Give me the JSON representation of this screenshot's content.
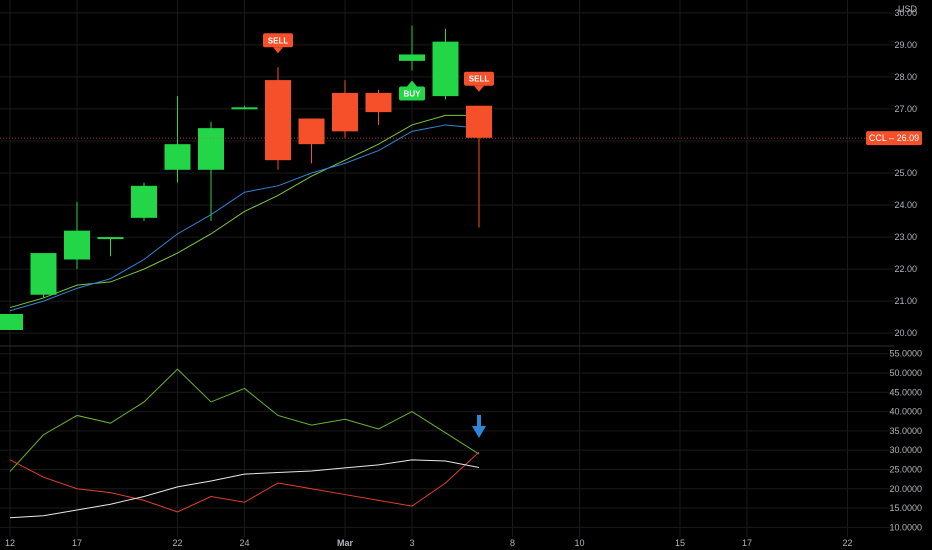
{
  "chart_data": [
    {
      "type": "candlestick",
      "currency": "USD",
      "symbol_label": "CCL",
      "last_price": "26.09",
      "ylim": [
        19.6,
        30.4
      ],
      "y_ticks": [
        "20.00",
        "21.00",
        "22.00",
        "23.00",
        "24.00",
        "25.00",
        "26.00",
        "27.00",
        "28.00",
        "29.00",
        "30.00"
      ],
      "x_ticks": [
        {
          "label": "12",
          "i": 0,
          "bold": false
        },
        {
          "label": "17",
          "i": 2,
          "bold": false
        },
        {
          "label": "22",
          "i": 5,
          "bold": false
        },
        {
          "label": "24",
          "i": 7,
          "bold": false
        },
        {
          "label": "Mar",
          "i": 10,
          "bold": true
        },
        {
          "label": "3",
          "i": 12,
          "bold": false
        },
        {
          "label": "8",
          "i": 15,
          "bold": false
        },
        {
          "label": "10",
          "i": 17,
          "bold": false
        },
        {
          "label": "15",
          "i": 20,
          "bold": false
        },
        {
          "label": "17",
          "i": 22,
          "bold": false
        },
        {
          "label": "22",
          "i": 25,
          "bold": false
        }
      ],
      "candles": [
        {
          "o": 20.1,
          "h": 20.6,
          "l": 20.1,
          "c": 20.6
        },
        {
          "o": 21.2,
          "h": 22.5,
          "l": 21.1,
          "c": 22.5
        },
        {
          "o": 22.3,
          "h": 24.1,
          "l": 22.0,
          "c": 23.2
        },
        {
          "o": 22.95,
          "h": 23.0,
          "l": 22.4,
          "c": 23.0
        },
        {
          "o": 23.6,
          "h": 24.7,
          "l": 23.5,
          "c": 24.6
        },
        {
          "o": 25.1,
          "h": 27.4,
          "l": 24.7,
          "c": 25.9
        },
        {
          "o": 25.1,
          "h": 26.6,
          "l": 23.5,
          "c": 26.4
        },
        {
          "o": 27.0,
          "h": 27.1,
          "l": 27.0,
          "c": 27.05
        },
        {
          "o": 27.9,
          "h": 28.3,
          "l": 25.1,
          "c": 25.4
        },
        {
          "o": 26.7,
          "h": 26.7,
          "l": 25.3,
          "c": 25.9
        },
        {
          "o": 27.5,
          "h": 27.9,
          "l": 26.1,
          "c": 26.3
        },
        {
          "o": 27.5,
          "h": 27.6,
          "l": 26.5,
          "c": 26.9
        },
        {
          "o": 28.5,
          "h": 29.6,
          "l": 28.2,
          "c": 28.7
        },
        {
          "o": 27.4,
          "h": 29.5,
          "l": 27.3,
          "c": 29.1
        },
        {
          "o": 27.1,
          "h": 27.1,
          "l": 23.3,
          "c": 26.1
        }
      ],
      "ma_blue": [
        20.7,
        21.0,
        21.4,
        21.7,
        22.3,
        23.1,
        23.7,
        24.4,
        24.6,
        25.0,
        25.3,
        25.7,
        26.3,
        26.5,
        26.4
      ],
      "ma_green": [
        20.8,
        21.1,
        21.5,
        21.6,
        22.0,
        22.5,
        23.1,
        23.8,
        24.3,
        24.9,
        25.4,
        25.9,
        26.5,
        26.8,
        26.8
      ],
      "signals": [
        {
          "i": 8,
          "type": "SELL",
          "label": "SELL"
        },
        {
          "i": 12,
          "type": "BUY",
          "label": "BUY"
        },
        {
          "i": 14,
          "type": "SELL",
          "label": "SELL"
        }
      ],
      "colors": {
        "up": "#22d647",
        "down": "#f5502a",
        "ma_blue": "#2f86d6",
        "ma_green": "#7bc83a",
        "grid": "#1a1a1a",
        "last": "#f5502a"
      }
    },
    {
      "type": "line",
      "ylim": [
        7.5,
        57.0
      ],
      "y_ticks": [
        "10.0000",
        "15.0000",
        "20.0000",
        "25.0000",
        "30.0000",
        "35.0000",
        "40.0000",
        "45.0000",
        "50.0000",
        "55.0000"
      ],
      "series": [
        {
          "color": "#67b530",
          "values": [
            24.5,
            34.0,
            39.0,
            37.0,
            42.5,
            51.0,
            42.5,
            46.0,
            39.0,
            36.5,
            38.0,
            35.5,
            40.0,
            34.5,
            29.0
          ]
        },
        {
          "color": "#e2402e",
          "values": [
            27.5,
            23.0,
            20.0,
            19.0,
            17.0,
            14.0,
            18.0,
            16.5,
            21.5,
            20.0,
            18.5,
            17.0,
            15.5,
            21.5,
            29.5
          ]
        },
        {
          "color": "#e8e8e8",
          "values": [
            12.5,
            13.0,
            14.5,
            16.0,
            18.0,
            20.5,
            22.0,
            23.8,
            24.2,
            24.6,
            25.4,
            26.2,
            27.5,
            27.2,
            25.5
          ]
        }
      ],
      "arrow_at": 14,
      "arrow_color": "#2f86d6"
    }
  ]
}
